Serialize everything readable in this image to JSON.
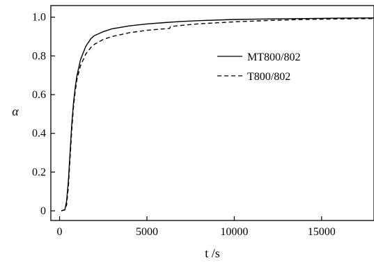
{
  "chart_data": {
    "type": "line",
    "title": "",
    "xlabel": "t /s",
    "ylabel": "α",
    "xlim": [
      -500,
      18000
    ],
    "ylim": [
      -0.05,
      1.06
    ],
    "x_ticks": [
      0,
      5000,
      10000,
      15000
    ],
    "y_ticks": [
      0,
      0.2,
      0.4,
      0.6,
      0.8,
      1.0
    ],
    "x_tick_labels": [
      "0",
      "5000",
      "10000",
      "15000"
    ],
    "y_tick_labels": [
      "0",
      "0.2",
      "0.4",
      "0.6",
      "0.8",
      "1.0"
    ],
    "grid": false,
    "legend_position": "right, upper middle",
    "series": [
      {
        "name": "MT800/802",
        "style": "solid",
        "color": "#000000",
        "points": [
          [
            100,
            0.0
          ],
          [
            300,
            0.005
          ],
          [
            400,
            0.05
          ],
          [
            500,
            0.15
          ],
          [
            600,
            0.3
          ],
          [
            700,
            0.45
          ],
          [
            800,
            0.56
          ],
          [
            900,
            0.64
          ],
          [
            1000,
            0.7
          ],
          [
            1200,
            0.78
          ],
          [
            1500,
            0.85
          ],
          [
            1800,
            0.89
          ],
          [
            2000,
            0.905
          ],
          [
            2500,
            0.925
          ],
          [
            3000,
            0.94
          ],
          [
            4000,
            0.955
          ],
          [
            5000,
            0.965
          ],
          [
            6000,
            0.972
          ],
          [
            7000,
            0.978
          ],
          [
            8000,
            0.982
          ],
          [
            10000,
            0.988
          ],
          [
            12000,
            0.991
          ],
          [
            14000,
            0.993
          ],
          [
            16000,
            0.995
          ],
          [
            18000,
            0.996
          ]
        ]
      },
      {
        "name": "T800/802",
        "style": "dashed",
        "color": "#000000",
        "points": [
          [
            100,
            0.0
          ],
          [
            300,
            0.005
          ],
          [
            400,
            0.03
          ],
          [
            500,
            0.12
          ],
          [
            600,
            0.27
          ],
          [
            700,
            0.42
          ],
          [
            800,
            0.54
          ],
          [
            900,
            0.62
          ],
          [
            1000,
            0.68
          ],
          [
            1200,
            0.75
          ],
          [
            1500,
            0.81
          ],
          [
            1800,
            0.845
          ],
          [
            2000,
            0.86
          ],
          [
            2500,
            0.885
          ],
          [
            3000,
            0.9
          ],
          [
            4000,
            0.92
          ],
          [
            5000,
            0.932
          ],
          [
            6000,
            0.94
          ],
          [
            6300,
            0.942
          ],
          [
            6350,
            0.952
          ],
          [
            7000,
            0.958
          ],
          [
            8000,
            0.966
          ],
          [
            10000,
            0.976
          ],
          [
            12000,
            0.983
          ],
          [
            14000,
            0.988
          ],
          [
            16000,
            0.991
          ],
          [
            18000,
            0.993
          ]
        ]
      }
    ]
  }
}
